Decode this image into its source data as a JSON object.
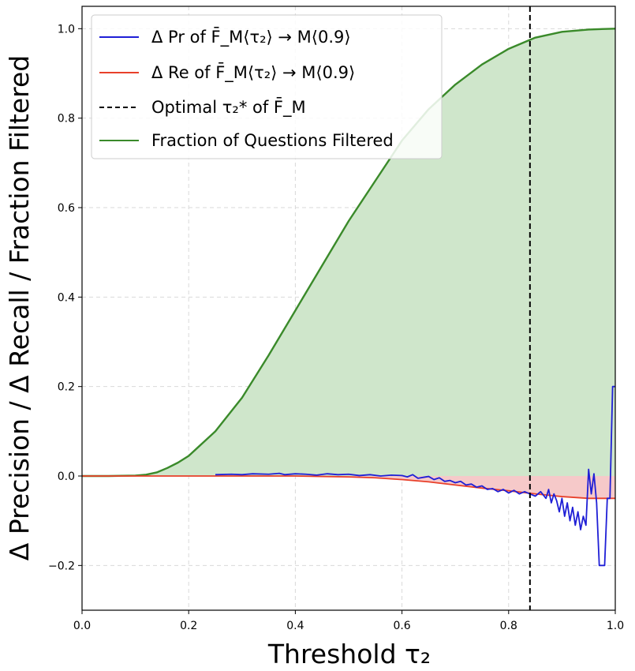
{
  "chart_data": {
    "type": "line",
    "xlabel": "Threshold τ₂",
    "ylabel": "Δ Precision / Δ Recall / Fraction Filtered",
    "xlim": [
      0.0,
      1.0
    ],
    "ylim": [
      -0.3,
      1.05
    ],
    "x_ticks": [
      "0.0",
      "0.2",
      "0.4",
      "0.6",
      "0.8",
      "1.0"
    ],
    "y_ticks": [
      "−0.2",
      "0.0",
      "0.2",
      "0.4",
      "0.6",
      "0.8",
      "1.0"
    ],
    "x_tick_values": [
      0.0,
      0.2,
      0.4,
      0.6,
      0.8,
      1.0
    ],
    "y_tick_values": [
      -0.2,
      0.0,
      0.2,
      0.4,
      0.6,
      0.8,
      1.0
    ],
    "grid": true,
    "legend_position": "top-left",
    "vline": {
      "x": 0.84,
      "label": "Optimal τ₂* of F̄_M",
      "color": "#000000",
      "style": "dashed"
    },
    "series": [
      {
        "name": "Δ Pr of F̄_M⟨τ₂⟩ → M⟨0.9⟩",
        "color": "#1f1fd6",
        "x": [
          0.25,
          0.28,
          0.3,
          0.32,
          0.35,
          0.37,
          0.38,
          0.4,
          0.42,
          0.44,
          0.46,
          0.48,
          0.5,
          0.52,
          0.54,
          0.56,
          0.58,
          0.6,
          0.61,
          0.62,
          0.63,
          0.64,
          0.65,
          0.66,
          0.67,
          0.68,
          0.69,
          0.7,
          0.71,
          0.72,
          0.73,
          0.74,
          0.75,
          0.76,
          0.77,
          0.78,
          0.79,
          0.8,
          0.81,
          0.82,
          0.83,
          0.84,
          0.85,
          0.86,
          0.87,
          0.875,
          0.88,
          0.885,
          0.89,
          0.895,
          0.9,
          0.905,
          0.91,
          0.915,
          0.92,
          0.925,
          0.93,
          0.935,
          0.94,
          0.945,
          0.95,
          0.955,
          0.96,
          0.965,
          0.97,
          0.975,
          0.98,
          0.985,
          0.99,
          0.995,
          1.0
        ],
        "y": [
          0.003,
          0.004,
          0.003,
          0.005,
          0.004,
          0.006,
          0.003,
          0.005,
          0.004,
          0.002,
          0.005,
          0.003,
          0.004,
          0.001,
          0.003,
          0.0,
          0.002,
          0.001,
          -0.002,
          0.003,
          -0.005,
          -0.003,
          -0.001,
          -0.008,
          -0.004,
          -0.012,
          -0.01,
          -0.015,
          -0.012,
          -0.02,
          -0.018,
          -0.025,
          -0.022,
          -0.03,
          -0.028,
          -0.035,
          -0.03,
          -0.038,
          -0.032,
          -0.04,
          -0.035,
          -0.04,
          -0.045,
          -0.035,
          -0.05,
          -0.03,
          -0.06,
          -0.04,
          -0.055,
          -0.08,
          -0.05,
          -0.09,
          -0.06,
          -0.1,
          -0.07,
          -0.11,
          -0.08,
          -0.12,
          -0.09,
          -0.11,
          0.015,
          -0.04,
          0.005,
          -0.06,
          -0.2,
          -0.2,
          -0.2,
          -0.05,
          -0.05,
          0.2,
          0.2
        ]
      },
      {
        "name": "Δ Re of F̄_M⟨τ₂⟩ → M⟨0.9⟩",
        "color": "#e8402a",
        "x": [
          0.0,
          0.1,
          0.2,
          0.3,
          0.4,
          0.45,
          0.5,
          0.55,
          0.6,
          0.65,
          0.7,
          0.75,
          0.8,
          0.85,
          0.9,
          0.95,
          1.0
        ],
        "y": [
          0.0,
          0.0,
          0.0,
          0.0,
          0.0,
          -0.001,
          -0.002,
          -0.004,
          -0.008,
          -0.013,
          -0.02,
          -0.027,
          -0.033,
          -0.04,
          -0.046,
          -0.05,
          -0.05
        ]
      },
      {
        "name": "Fraction of Questions Filtered",
        "color": "#3a8a2a",
        "x": [
          0.0,
          0.05,
          0.1,
          0.12,
          0.14,
          0.16,
          0.18,
          0.2,
          0.25,
          0.3,
          0.35,
          0.4,
          0.45,
          0.5,
          0.55,
          0.6,
          0.65,
          0.7,
          0.75,
          0.8,
          0.85,
          0.9,
          0.95,
          0.97,
          1.0
        ],
        "y": [
          0.0,
          0.0,
          0.001,
          0.003,
          0.008,
          0.018,
          0.03,
          0.045,
          0.1,
          0.175,
          0.27,
          0.37,
          0.47,
          0.57,
          0.66,
          0.75,
          0.82,
          0.875,
          0.92,
          0.955,
          0.98,
          0.993,
          0.998,
          0.999,
          1.0
        ]
      }
    ],
    "fills": [
      {
        "series": 2,
        "color": "#cfe6cb"
      },
      {
        "series": 1,
        "color": "#f6c9c9"
      }
    ]
  }
}
